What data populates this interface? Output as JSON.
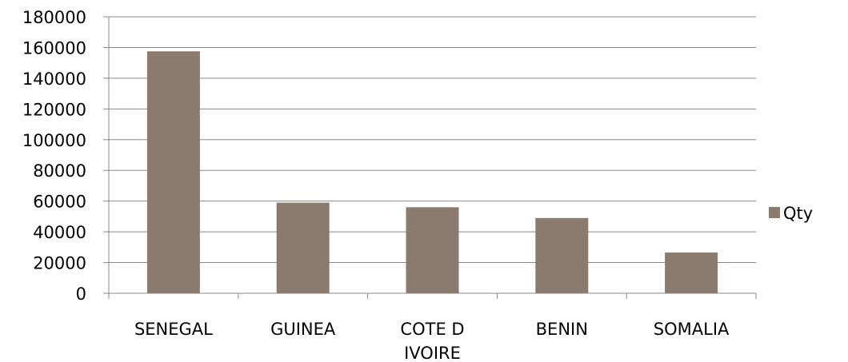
{
  "chart_data": {
    "type": "bar",
    "categories": [
      "SENEGAL",
      "GUINEA",
      "COTE D IVOIRE",
      "BENIN",
      "SOMALIA"
    ],
    "category_label_lines": [
      [
        "SENEGAL"
      ],
      [
        "GUINEA"
      ],
      [
        "COTE D",
        "IVOIRE"
      ],
      [
        "BENIN"
      ],
      [
        "SOMALIA"
      ]
    ],
    "series": [
      {
        "name": "Qty",
        "values": [
          157500,
          59000,
          56000,
          49000,
          26500
        ],
        "color": "#8b7b6e"
      }
    ],
    "ylim": [
      0,
      180000
    ],
    "yticks": [
      0,
      20000,
      40000,
      60000,
      80000,
      100000,
      120000,
      140000,
      160000,
      180000
    ],
    "ytick_labels": [
      "0",
      "20000",
      "40000",
      "60000",
      "80000",
      "100000",
      "120000",
      "140000",
      "160000",
      "180000"
    ],
    "grid": true,
    "gridline_color": "#888888",
    "legend_position": "right"
  }
}
